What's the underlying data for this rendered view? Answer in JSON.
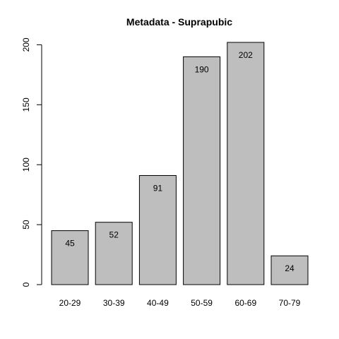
{
  "chart_data": {
    "type": "bar",
    "title": "Metadata - Suprapubic",
    "xlabel": "",
    "ylabel": "",
    "categories": [
      "20-29",
      "30-39",
      "40-49",
      "50-59",
      "60-69",
      "70-79"
    ],
    "values": [
      45,
      52,
      91,
      190,
      202,
      24
    ],
    "data_labels": [
      "45",
      "52",
      "91",
      "190",
      "202",
      "24"
    ],
    "yticks": [
      0,
      50,
      100,
      150,
      200
    ],
    "ylim": [
      0,
      202
    ],
    "bar_color": "#bebebe",
    "bar_border_color": "#000000",
    "grid": false,
    "legend": "none"
  }
}
